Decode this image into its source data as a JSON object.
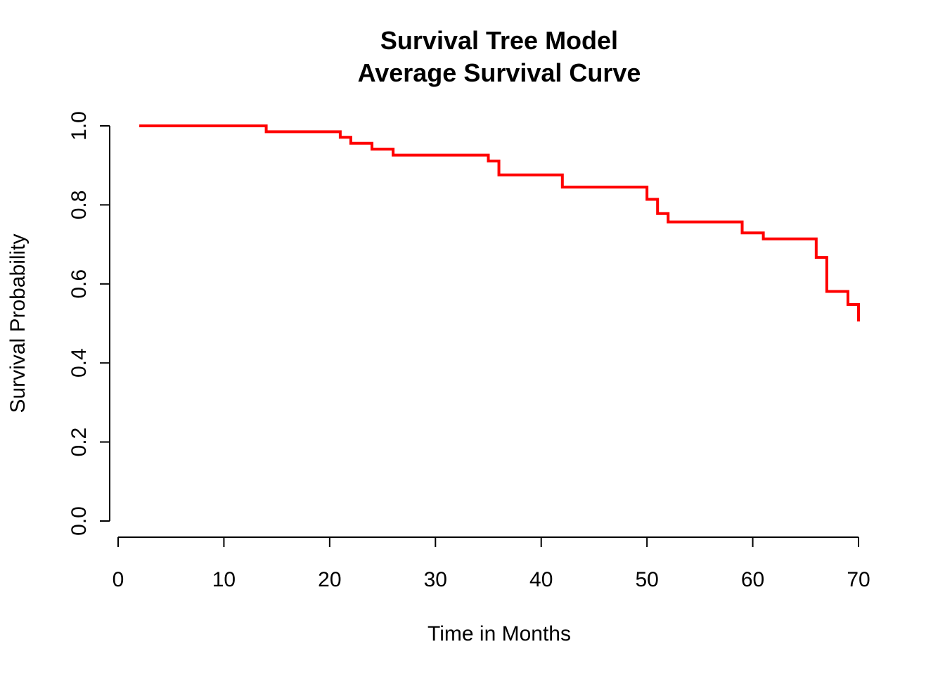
{
  "chart_data": {
    "type": "line",
    "step": true,
    "title_lines": [
      "Survival Tree Model",
      "Average Survival Curve"
    ],
    "xlabel": "Time in Months",
    "ylabel": "Survival Probability",
    "xlim": [
      0,
      70
    ],
    "ylim": [
      0,
      1
    ],
    "x_ticks": [
      0,
      10,
      20,
      30,
      40,
      50,
      60,
      70
    ],
    "x_tick_labels": [
      "0",
      "10",
      "20",
      "30",
      "40",
      "50",
      "60",
      "70"
    ],
    "y_ticks": [
      0,
      0.2,
      0.4,
      0.6,
      0.8,
      1.0
    ],
    "y_tick_labels": [
      "0.0",
      "0.2",
      "0.4",
      "0.6",
      "0.8",
      "1.0"
    ],
    "grid": false,
    "legend": "none",
    "color": "#ff0000",
    "series": [
      {
        "x": [
          2,
          14,
          21,
          22,
          24,
          26,
          35,
          36,
          42,
          50,
          51,
          52,
          59,
          61,
          66,
          67,
          69,
          70
        ],
        "y": [
          1.0,
          0.985,
          0.971,
          0.956,
          0.941,
          0.926,
          0.911,
          0.876,
          0.845,
          0.814,
          0.778,
          0.757,
          0.729,
          0.714,
          0.667,
          0.581,
          0.548,
          0.505
        ]
      }
    ]
  }
}
